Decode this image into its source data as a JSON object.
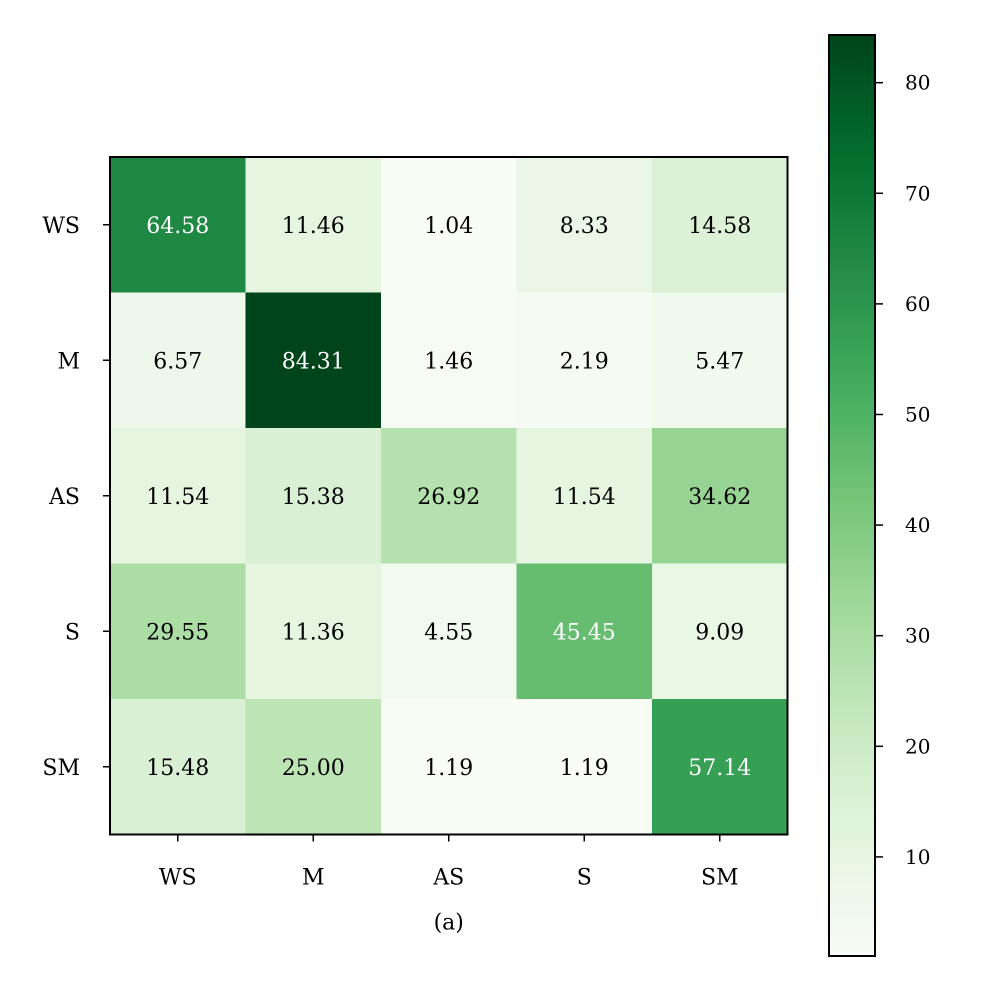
{
  "chart_data": {
    "type": "heatmap",
    "title": "",
    "caption": "(a)",
    "xlabel": "",
    "ylabel": "",
    "x_categories": [
      "WS",
      "M",
      "AS",
      "S",
      "SM"
    ],
    "y_categories": [
      "WS",
      "M",
      "AS",
      "S",
      "SM"
    ],
    "values": [
      [
        64.58,
        11.46,
        1.04,
        8.33,
        14.58
      ],
      [
        6.57,
        84.31,
        1.46,
        2.19,
        5.47
      ],
      [
        11.54,
        15.38,
        26.92,
        11.54,
        34.62
      ],
      [
        29.55,
        11.36,
        4.55,
        45.45,
        9.09
      ],
      [
        15.48,
        25.0,
        1.19,
        1.19,
        57.14
      ]
    ],
    "value_labels": [
      [
        "64.58",
        "11.46",
        "1.04",
        "8.33",
        "14.58"
      ],
      [
        "6.57",
        "84.31",
        "1.46",
        "2.19",
        "5.47"
      ],
      [
        "11.54",
        "15.38",
        "26.92",
        "11.54",
        "34.62"
      ],
      [
        "29.55",
        "11.36",
        "4.55",
        "45.45",
        "9.09"
      ],
      [
        "15.48",
        "25.00",
        "1.19",
        "1.19",
        "57.14"
      ]
    ],
    "colormap": "Greens",
    "color_range": [
      1.04,
      84.31
    ],
    "colorbar": {
      "placement": "right",
      "ticks": [
        10,
        20,
        30,
        40,
        50,
        60,
        70,
        80
      ],
      "tick_labels": [
        "10",
        "20",
        "30",
        "40",
        "50",
        "60",
        "70",
        "80"
      ]
    },
    "text_color_light": "#ffffff",
    "text_color_dark": "#000000"
  }
}
